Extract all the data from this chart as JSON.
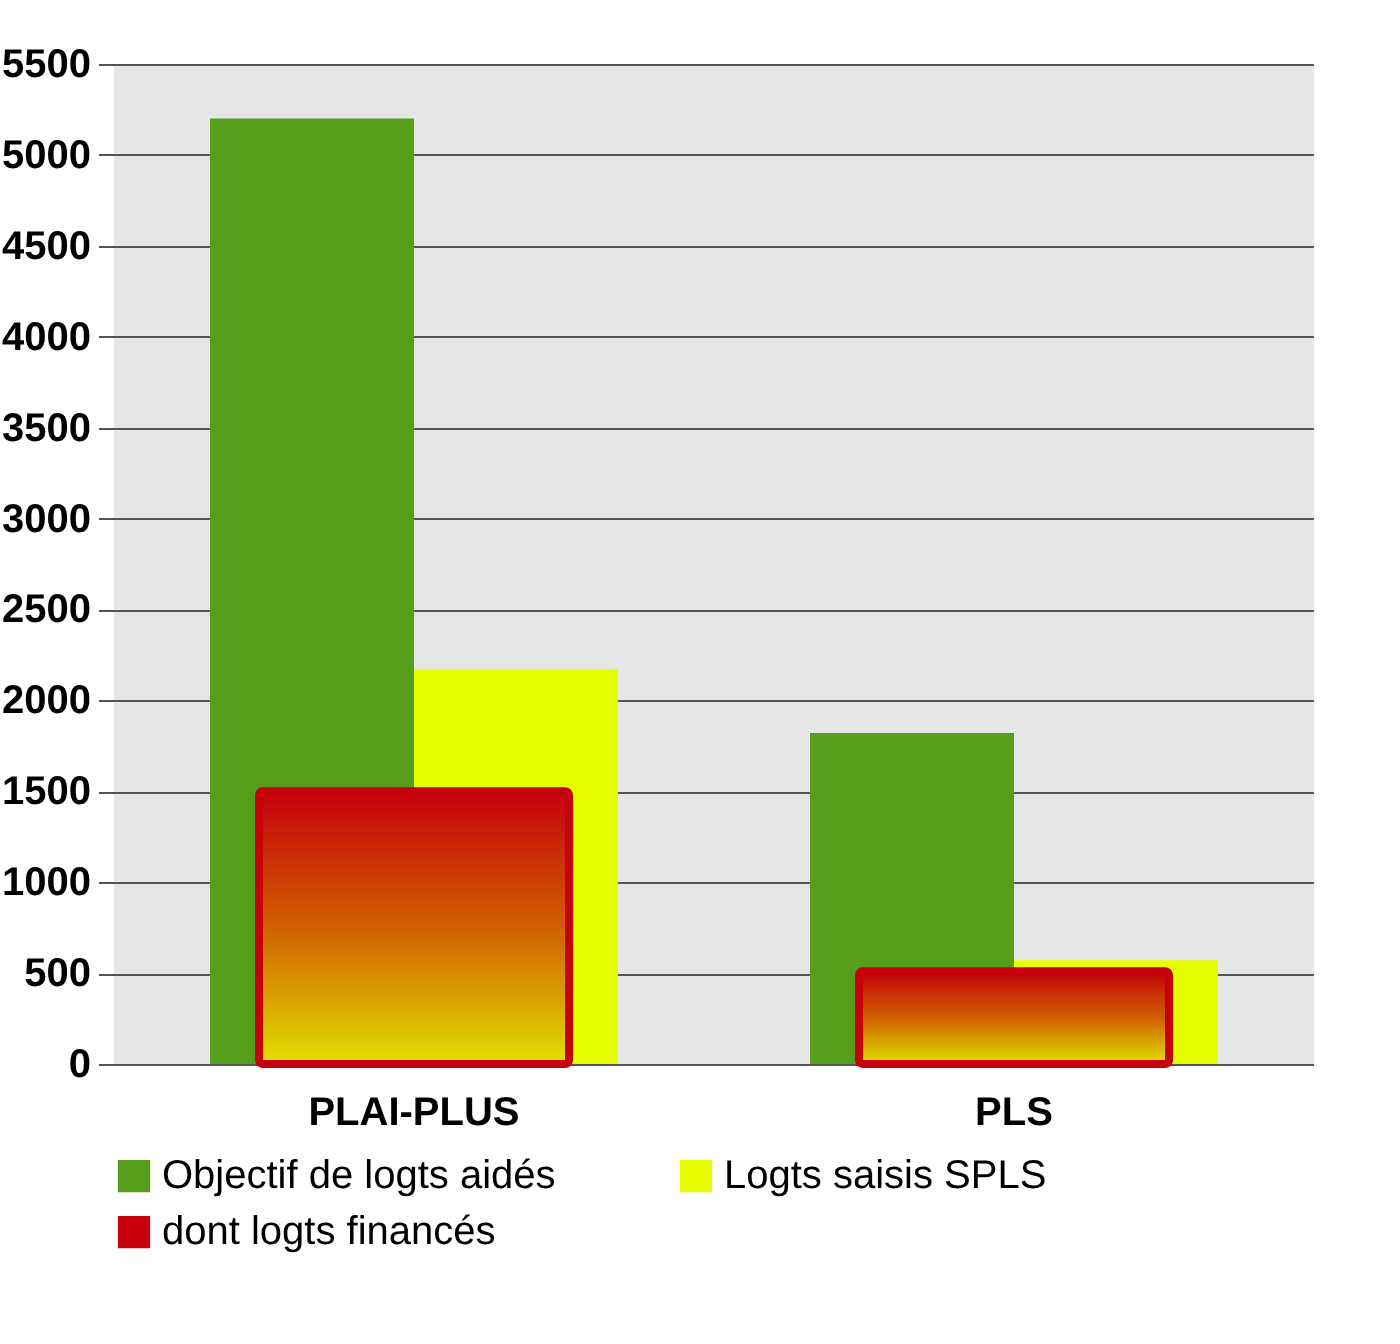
{
  "chart_data": {
    "type": "bar",
    "categories": [
      "PLAI-PLUS",
      "PLS"
    ],
    "series": [
      {
        "name": "Objectif de logts aidés",
        "color": "#579d1c",
        "values": [
          5200,
          1820
        ]
      },
      {
        "name": "Logts saisis SPLS",
        "color": "#e6ff00",
        "values": [
          2170,
          570
        ]
      },
      {
        "name": "dont logts financés",
        "color": "#c5000b",
        "values": [
          1500,
          510
        ]
      }
    ],
    "ylim": [
      0,
      5500
    ],
    "yticks": [
      0,
      500,
      1000,
      1500,
      2000,
      2500,
      3000,
      3500,
      4000,
      4500,
      5000,
      5500
    ],
    "grid": "y",
    "legend": "bottom"
  }
}
